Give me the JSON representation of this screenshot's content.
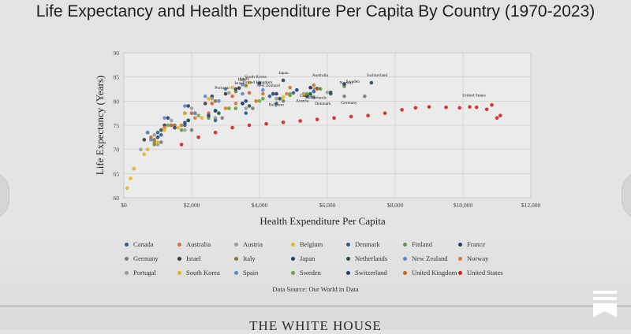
{
  "chart_data": {
    "type": "scatter",
    "title": "Life Expectancy and Health Expenditure Per Capita By Country (1970-2023)",
    "xlabel": "Health Expenditure Per Capita",
    "ylabel": "Life Expectancy (Years)",
    "xlim": [
      0,
      12000
    ],
    "ylim": [
      60,
      90
    ],
    "x_ticks": [
      0,
      2000,
      4000,
      6000,
      8000,
      10000,
      12000
    ],
    "x_tick_labels": [
      "$0",
      "$2,000",
      "$4,000",
      "$6,000",
      "$8,000",
      "$10,000",
      "$12,000"
    ],
    "y_ticks": [
      60,
      65,
      70,
      75,
      80,
      85,
      90
    ],
    "y_tick_labels": [
      "60",
      "65",
      "70",
      "75",
      "80",
      "85",
      "90"
    ],
    "grid": true,
    "legend_position": "bottom",
    "source": "Data Source: Our World in Data",
    "series": [
      {
        "name": "Canada",
        "color": "#2e5aa8",
        "x": [
          1100,
          1900,
          2700,
          3500,
          4300,
          5000,
          5600
        ],
        "y": [
          73,
          76,
          78,
          79.5,
          81,
          81.7,
          82
        ]
      },
      {
        "name": "Australia",
        "color": "#d9702a",
        "x": [
          900,
          1700,
          2500,
          3300,
          4100,
          4900,
          5600
        ],
        "y": [
          71.5,
          75,
          77.5,
          79.5,
          81.5,
          82.8,
          83.3
        ]
      },
      {
        "name": "Austria",
        "color": "#9a9a9a",
        "x": [
          1000,
          1800,
          2700,
          3600,
          4500,
          5300,
          6000
        ],
        "y": [
          71,
          74,
          76.5,
          78.5,
          80.5,
          81.5,
          81.8
        ]
      },
      {
        "name": "Belgium",
        "color": "#e6b422",
        "x": [
          100,
          200,
          300,
          600,
          1000,
          1600,
          2300,
          3100,
          3900,
          4700,
          5300
        ],
        "y": [
          62,
          64,
          66,
          69,
          71.5,
          74.5,
          76.5,
          78.5,
          80,
          80.8,
          81.3
        ]
      },
      {
        "name": "Denmark",
        "color": "#2b5b8a",
        "x": [
          1000,
          1800,
          2700,
          3600,
          4500,
          5400,
          6100
        ],
        "y": [
          73.5,
          75,
          76,
          77.5,
          79.5,
          81,
          81.5
        ]
      },
      {
        "name": "Finland",
        "color": "#5a9e3a",
        "x": [
          900,
          1700,
          2500,
          3300,
          4100,
          4900,
          5400
        ],
        "y": [
          71,
          74,
          76.5,
          78.5,
          80.5,
          81.2,
          81.5
        ]
      },
      {
        "name": "France",
        "color": "#1f3f7a",
        "x": [
          1000,
          1800,
          2700,
          3600,
          4400,
          5100,
          5700
        ],
        "y": [
          72.5,
          75.5,
          78,
          80,
          81.5,
          82.3,
          82.6
        ]
      },
      {
        "name": "Germany",
        "color": "#7a7a7a",
        "x": [
          1100,
          2000,
          2900,
          3800,
          4700,
          5600,
          6500,
          7100
        ],
        "y": [
          71.5,
          74,
          76.5,
          78.5,
          80,
          80.8,
          81,
          81
        ]
      },
      {
        "name": "Israel",
        "color": "#3a3a3a",
        "x": [
          600,
          1200,
          1800,
          2400,
          3000,
          3400
        ],
        "y": [
          72,
          75,
          77.5,
          79.5,
          81.5,
          82.7
        ]
      },
      {
        "name": "Italy",
        "color": "#8a7a2a",
        "x": [
          900,
          1500,
          2100,
          2700,
          3300,
          3600
        ],
        "y": [
          72,
          75,
          77.5,
          80,
          82,
          83.2
        ]
      },
      {
        "name": "Japan",
        "color": "#233f6a",
        "x": [
          700,
          1300,
          1900,
          2600,
          3300,
          4000,
          4700
        ],
        "y": [
          73.5,
          76.5,
          79,
          81,
          82.5,
          83.7,
          84.3
        ]
      },
      {
        "name": "Netherlands",
        "color": "#1e5a3a",
        "x": [
          1100,
          1900,
          2800,
          3700,
          4600,
          5500,
          6100
        ],
        "y": [
          74,
          76,
          77.5,
          79,
          80.5,
          81.5,
          81.8
        ]
      },
      {
        "name": "New Zealand",
        "color": "#5a8ad0",
        "x": [
          800,
          1400,
          2100,
          2800,
          3500,
          4100
        ],
        "y": [
          72,
          75,
          77.5,
          80,
          81.5,
          82.3
        ]
      },
      {
        "name": "Norway",
        "color": "#e07a2a",
        "x": [
          1200,
          2100,
          3000,
          3900,
          4800,
          5700,
          6500
        ],
        "y": [
          74.5,
          76.5,
          78.5,
          80,
          81.5,
          82.5,
          83.2
        ]
      },
      {
        "name": "Portugal",
        "color": "#9a9a9a",
        "x": [
          500,
          900,
          1400,
          2000,
          2600,
          3100
        ],
        "y": [
          70,
          73,
          76,
          78.5,
          80.5,
          81.7
        ]
      },
      {
        "name": "South Korea",
        "color": "#e6b422",
        "x": [
          300,
          700,
          1200,
          1800,
          2500,
          3200,
          3700
        ],
        "y": [
          66,
          70,
          74,
          77.5,
          80.5,
          82.8,
          83.8
        ]
      },
      {
        "name": "Spain",
        "color": "#5a8ad0",
        "x": [
          700,
          1200,
          1800,
          2400,
          3000,
          3500
        ],
        "y": [
          73.5,
          76.5,
          79,
          81,
          82.5,
          83.4
        ]
      },
      {
        "name": "Sweden",
        "color": "#6aa84f",
        "x": [
          1300,
          2200,
          3100,
          4000,
          4900,
          5800,
          6500
        ],
        "y": [
          75,
          77,
          78.5,
          80,
          81.5,
          82.5,
          83
        ]
      },
      {
        "name": "Switzerland",
        "color": "#1f3f7a",
        "x": [
          1500,
          2500,
          3500,
          4500,
          5500,
          6500,
          7300
        ],
        "y": [
          74.5,
          77,
          79.5,
          81.5,
          82.8,
          83.5,
          83.8
        ]
      },
      {
        "name": "United Kingdom",
        "color": "#c8642a",
        "x": [
          800,
          1400,
          2000,
          2600,
          3200,
          3700
        ],
        "y": [
          72.5,
          75,
          77.5,
          79.5,
          81,
          81.7
        ]
      },
      {
        "name": "United States",
        "color": "#d0231f",
        "x": [
          1700,
          2200,
          2700,
          3200,
          3700,
          4200,
          4700,
          5200,
          5700,
          6200,
          6700,
          7200,
          7700,
          8200,
          8600,
          9000,
          9500,
          9900,
          10200,
          10400,
          10700,
          10850,
          11000,
          11100
        ],
        "y": [
          71,
          72.5,
          73.5,
          74.5,
          75,
          75.3,
          75.6,
          75.9,
          76.2,
          76.5,
          76.8,
          77,
          77.5,
          78.2,
          78.6,
          78.8,
          78.7,
          78.6,
          78.8,
          78.7,
          78.3,
          79.2,
          76.5,
          77
        ]
      }
    ],
    "annotations": [
      "United Kingdom",
      "Spain",
      "Italy",
      "Israel",
      "Portugal",
      "South Korea",
      "Japan",
      "New Zealand",
      "Australia",
      "Sweden",
      "France",
      "Norway",
      "Canada",
      "Switzerland",
      "Denmark",
      "Netherlands",
      "Germany",
      "Austria",
      "Belgium",
      "United States"
    ]
  },
  "footer": {
    "publisher": "THE WHITE HOUSE"
  }
}
